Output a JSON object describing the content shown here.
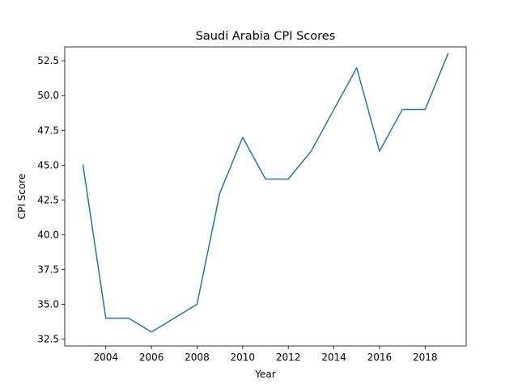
{
  "chart_data": {
    "type": "line",
    "title": "Saudi Arabia CPI Scores",
    "xlabel": "Year",
    "ylabel": "CPI Score",
    "x": [
      2003,
      2004,
      2005,
      2006,
      2007,
      2008,
      2009,
      2010,
      2011,
      2012,
      2013,
      2014,
      2015,
      2016,
      2017,
      2018,
      2019
    ],
    "series": [
      {
        "values": [
          45,
          34,
          34,
          33,
          34,
          35,
          43,
          47,
          44,
          44,
          46,
          49,
          52,
          46,
          49,
          49,
          53
        ],
        "color": "#1f77b4"
      }
    ],
    "xlim": [
      2002.2,
      2019.8
    ],
    "ylim": [
      32.0,
      53.5
    ],
    "xticks": [
      2004,
      2006,
      2008,
      2010,
      2012,
      2014,
      2016,
      2018
    ],
    "xtick_labels": [
      "2004",
      "2006",
      "2008",
      "2010",
      "2012",
      "2014",
      "2016",
      "2018"
    ],
    "yticks": [
      32.5,
      35.0,
      37.5,
      40.0,
      42.5,
      45.0,
      47.5,
      50.0,
      52.5
    ],
    "ytick_labels": [
      "32.5",
      "35.0",
      "37.5",
      "40.0",
      "42.5",
      "45.0",
      "47.5",
      "50.0",
      "52.5"
    ],
    "grid": false,
    "legend": false
  }
}
